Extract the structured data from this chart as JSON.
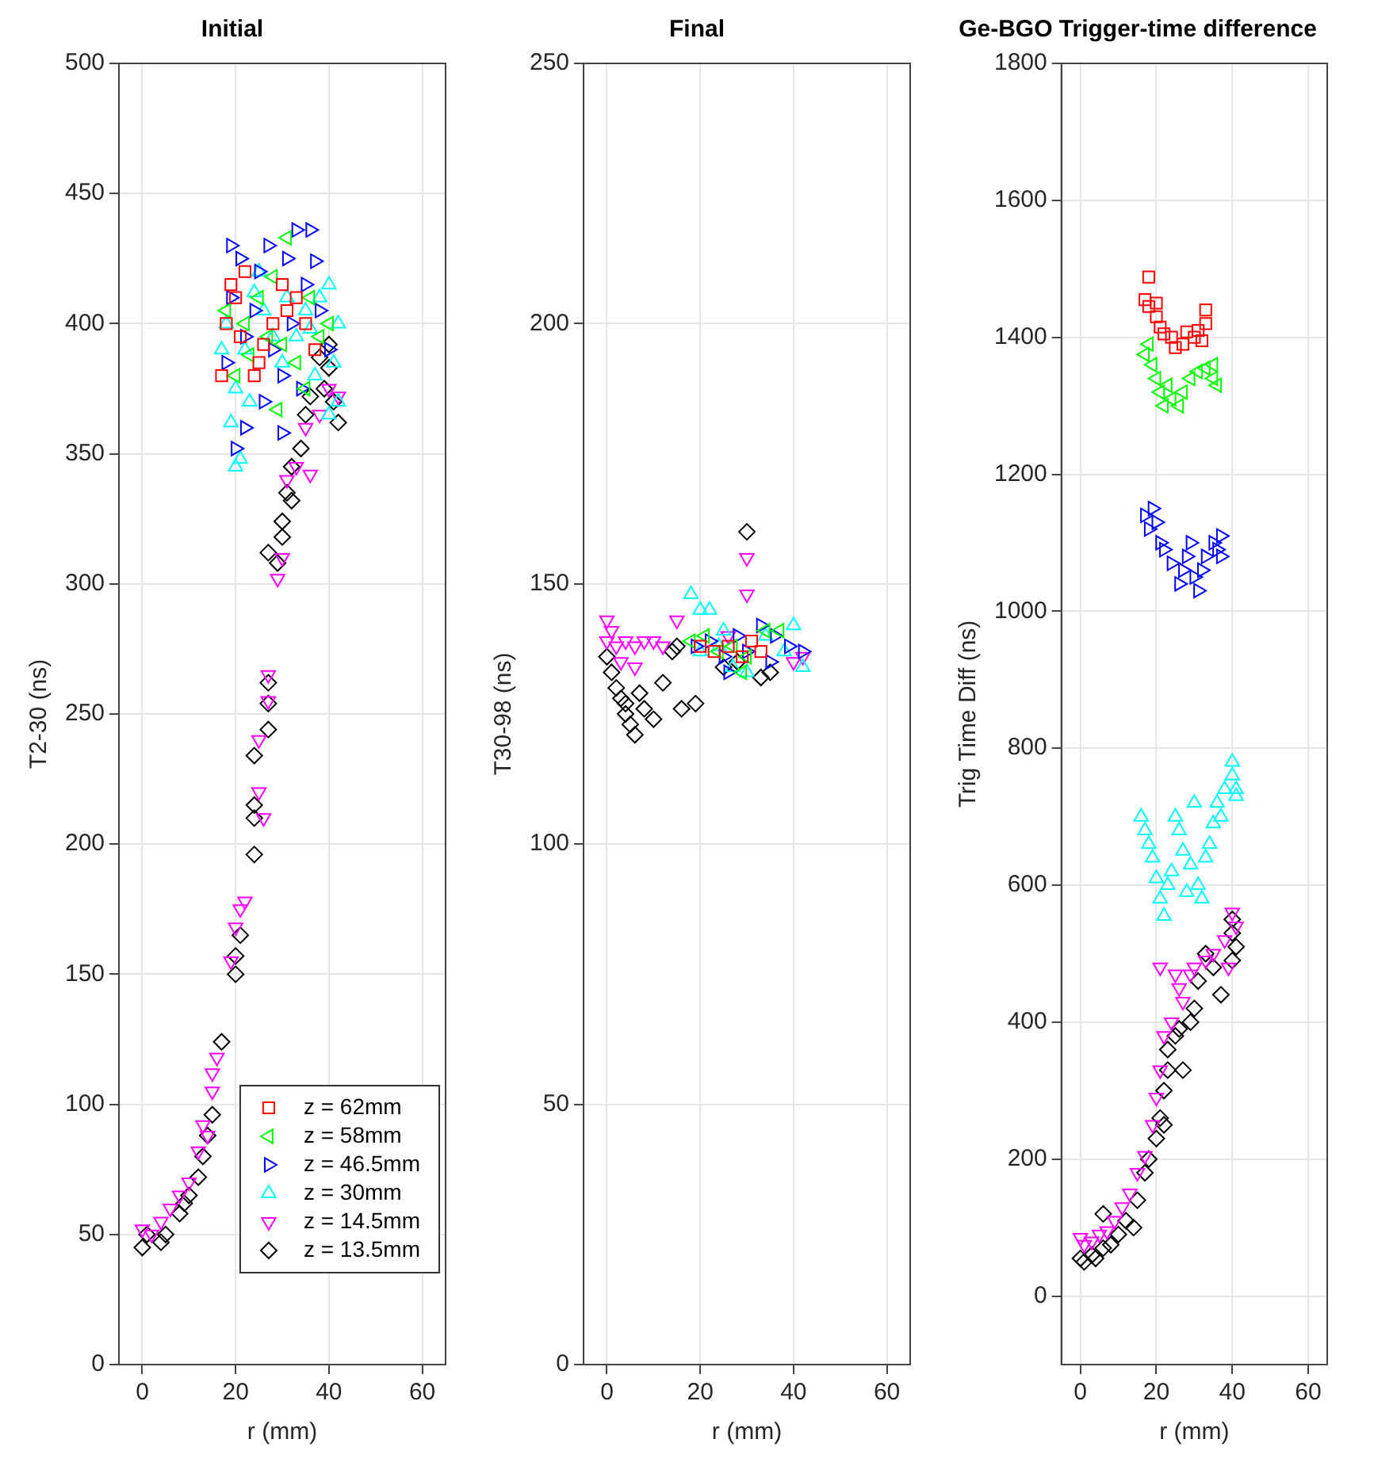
{
  "chart_data": [
    {
      "type": "scatter",
      "title": "Initial",
      "xlabel": "r (mm)",
      "ylabel": "T2-30 (ns)",
      "xlim": [
        -5,
        65
      ],
      "xticks": [
        0,
        20,
        40,
        60
      ],
      "ylim": [
        0,
        500
      ],
      "yticks": [
        0,
        50,
        100,
        150,
        200,
        250,
        300,
        350,
        400,
        450,
        500
      ],
      "grid": true,
      "legend": "bottom right",
      "series": [
        {
          "name": "z = 62mm",
          "color": "#ff0000",
          "marker": "square",
          "x": [
            17,
            18,
            19,
            20,
            21,
            24,
            26,
            28,
            30,
            31,
            33,
            35,
            37,
            22,
            25
          ],
          "values": [
            380,
            400,
            415,
            410,
            395,
            380,
            392,
            400,
            415,
            405,
            410,
            400,
            390,
            420,
            385
          ]
        },
        {
          "name": "z = 58mm",
          "color": "#00ff00",
          "marker": "triangle-left",
          "x": [
            31,
            29,
            20,
            22,
            25,
            28,
            30,
            33,
            36,
            38,
            18,
            23,
            35,
            40,
            27
          ],
          "values": [
            433,
            367,
            380,
            400,
            410,
            418,
            392,
            385,
            410,
            395,
            405,
            388,
            375,
            400,
            395
          ]
        },
        {
          "name": "z = 46.5mm",
          "color": "#0000ff",
          "marker": "triangle-right",
          "x": [
            20,
            22,
            19,
            21,
            27,
            31,
            33,
            36,
            37,
            35,
            32,
            30,
            28,
            24,
            22,
            18,
            26,
            30,
            34,
            38,
            40,
            19,
            25
          ],
          "values": [
            352,
            360,
            430,
            425,
            430,
            425,
            436,
            436,
            424,
            415,
            400,
            380,
            390,
            405,
            395,
            385,
            370,
            358,
            375,
            405,
            390,
            410,
            420
          ]
        },
        {
          "name": "z = 30mm",
          "color": "#00ffff",
          "marker": "triangle",
          "x": [
            20,
            21,
            19,
            20,
            22,
            18,
            24,
            26,
            28,
            30,
            33,
            35,
            38,
            40,
            42,
            41,
            40,
            37,
            23,
            25,
            31,
            36,
            42,
            17
          ],
          "values": [
            345,
            348,
            362,
            375,
            390,
            400,
            412,
            405,
            395,
            385,
            395,
            405,
            410,
            415,
            400,
            385,
            365,
            380,
            370,
            420,
            410,
            398,
            370,
            390
          ]
        },
        {
          "name": "z = 14.5mm",
          "color": "#ff00ff",
          "marker": "triangle-down",
          "x": [
            0,
            2,
            4,
            6,
            8,
            10,
            12,
            13,
            15,
            15,
            16,
            14,
            19,
            20,
            21,
            22,
            25,
            25,
            27,
            27,
            29,
            30,
            31,
            33,
            36,
            35,
            38,
            40,
            42,
            26
          ],
          "values": [
            52,
            50,
            55,
            60,
            65,
            70,
            82,
            92,
            105,
            112,
            118,
            88,
            155,
            168,
            175,
            178,
            220,
            240,
            255,
            265,
            302,
            310,
            340,
            345,
            342,
            360,
            365,
            375,
            372,
            210
          ]
        },
        {
          "name": "z = 13.5mm",
          "color": "#000000",
          "marker": "diamond",
          "x": [
            0,
            1,
            4,
            5,
            8,
            9,
            10,
            12,
            13,
            14,
            15,
            17,
            20,
            20,
            21,
            24,
            24,
            24,
            24,
            27,
            27,
            27,
            27,
            29,
            30,
            30,
            31,
            32,
            34,
            35,
            36,
            39,
            40,
            40,
            41,
            42,
            38,
            32
          ],
          "values": [
            45,
            50,
            47,
            50,
            58,
            62,
            65,
            72,
            80,
            88,
            96,
            124,
            150,
            157,
            165,
            196,
            210,
            215,
            234,
            244,
            254,
            262,
            312,
            308,
            318,
            324,
            335,
            345,
            352,
            365,
            372,
            375,
            383,
            392,
            370,
            362,
            387,
            332
          ]
        }
      ]
    },
    {
      "type": "scatter",
      "title": "Final",
      "xlabel": "r (mm)",
      "ylabel": "T30-98 (ns)",
      "xlim": [
        -5,
        65
      ],
      "xticks": [
        0,
        20,
        40,
        60
      ],
      "ylim": [
        0,
        250
      ],
      "yticks": [
        0,
        50,
        100,
        150,
        200,
        250
      ],
      "grid": true,
      "series": [
        {
          "color": "#ff0000",
          "marker": "square",
          "x": [
            20,
            23,
            26,
            29,
            31,
            33
          ],
          "values": [
            138,
            137,
            138,
            136,
            139,
            137
          ]
        },
        {
          "color": "#00ff00",
          "marker": "triangle-left",
          "x": [
            18,
            21,
            24,
            27,
            30,
            34,
            37,
            29
          ],
          "values": [
            139,
            140,
            137,
            138,
            136,
            141,
            141,
            133
          ]
        },
        {
          "color": "#0000ff",
          "marker": "triangle-right",
          "x": [
            19,
            22,
            25,
            28,
            30,
            33,
            36,
            39,
            42,
            35,
            26
          ],
          "values": [
            138,
            139,
            136,
            140,
            137,
            142,
            140,
            138,
            137,
            135,
            133
          ]
        },
        {
          "color": "#00ffff",
          "marker": "triangle",
          "x": [
            18,
            20,
            22,
            24,
            27,
            30,
            34,
            40,
            38,
            42,
            25,
            20
          ],
          "values": [
            148,
            145,
            145,
            138,
            134,
            133,
            140,
            142,
            137,
            134,
            141,
            137
          ]
        },
        {
          "color": "#ff00ff",
          "marker": "triangle-down",
          "x": [
            0,
            1,
            0,
            2,
            4,
            6,
            8,
            10,
            12,
            3,
            6,
            15,
            30,
            30,
            26,
            40,
            42
          ],
          "values": [
            143,
            141,
            139,
            138,
            139,
            138,
            139,
            139,
            138,
            135,
            134,
            143,
            155,
            148,
            140,
            135,
            136
          ]
        },
        {
          "color": "#000000",
          "marker": "diamond",
          "x": [
            0,
            1,
            2,
            3,
            4,
            5,
            6,
            4,
            7,
            8,
            10,
            12,
            14,
            16,
            19,
            15,
            30,
            25,
            33,
            35,
            28
          ],
          "values": [
            136,
            133,
            130,
            128,
            125,
            123,
            121,
            127,
            129,
            126,
            124,
            131,
            137,
            126,
            127,
            138,
            160,
            134,
            132,
            133,
            135
          ]
        }
      ]
    },
    {
      "type": "scatter",
      "title": "Ge-BGO Trigger-time difference",
      "xlabel": "r (mm)",
      "ylabel": "Trig Time Diff (ns)",
      "xlim": [
        -5,
        65
      ],
      "xticks": [
        0,
        20,
        40,
        60
      ],
      "ylim": [
        -100,
        1800
      ],
      "yticks": [
        0,
        200,
        400,
        600,
        800,
        1000,
        1200,
        1400,
        1600,
        1800
      ],
      "grid": true,
      "series": [
        {
          "color": "#ff0000",
          "marker": "square",
          "x": [
            18,
            17,
            18,
            20,
            20,
            21,
            22,
            24,
            25,
            27,
            28,
            30,
            31,
            32,
            33,
            33
          ],
          "values": [
            1488,
            1455,
            1445,
            1450,
            1430,
            1415,
            1405,
            1400,
            1385,
            1390,
            1408,
            1400,
            1410,
            1395,
            1420,
            1440
          ]
        },
        {
          "color": "#00ff00",
          "marker": "triangle-left",
          "x": [
            17,
            18,
            19,
            20,
            21,
            22,
            24,
            26,
            27,
            29,
            31,
            33,
            35,
            36,
            35,
            23
          ],
          "values": [
            1375,
            1390,
            1360,
            1340,
            1320,
            1300,
            1310,
            1300,
            1320,
            1340,
            1350,
            1355,
            1340,
            1330,
            1360,
            1330
          ]
        },
        {
          "color": "#0000ff",
          "marker": "triangle-right",
          "x": [
            17,
            18,
            19,
            20,
            21,
            22,
            24,
            26,
            27,
            28,
            29,
            30,
            32,
            33,
            35,
            36,
            37,
            37,
            31
          ],
          "values": [
            1140,
            1120,
            1150,
            1130,
            1100,
            1090,
            1070,
            1040,
            1060,
            1080,
            1100,
            1050,
            1060,
            1080,
            1100,
            1090,
            1080,
            1110,
            1030
          ]
        },
        {
          "color": "#00ffff",
          "marker": "triangle",
          "x": [
            16,
            17,
            18,
            19,
            20,
            21,
            22,
            23,
            24,
            25,
            26,
            27,
            28,
            29,
            30,
            31,
            32,
            33,
            34,
            35,
            36,
            37,
            38,
            40,
            40,
            41,
            41
          ],
          "values": [
            700,
            680,
            660,
            640,
            610,
            580,
            555,
            600,
            620,
            700,
            680,
            650,
            590,
            630,
            720,
            600,
            580,
            640,
            660,
            690,
            720,
            700,
            740,
            760,
            780,
            740,
            730
          ]
        },
        {
          "color": "#ff00ff",
          "marker": "triangle-down",
          "x": [
            0,
            1,
            3,
            5,
            7,
            9,
            11,
            13,
            15,
            17,
            19,
            20,
            21,
            22,
            24,
            25,
            26,
            27,
            29,
            30,
            33,
            35,
            38,
            40,
            41,
            21,
            39
          ],
          "values": [
            85,
            75,
            80,
            90,
            95,
            110,
            130,
            150,
            180,
            205,
            250,
            290,
            330,
            380,
            400,
            470,
            450,
            430,
            470,
            480,
            490,
            500,
            520,
            560,
            540,
            480,
            480
          ]
        },
        {
          "color": "#000000",
          "marker": "diamond",
          "x": [
            0,
            1,
            3,
            4,
            6,
            6,
            8,
            10,
            12,
            15,
            17,
            18,
            20,
            21,
            22,
            23,
            23,
            25,
            26,
            27,
            29,
            30,
            31,
            33,
            35,
            37,
            40,
            40,
            41,
            40,
            22,
            14
          ],
          "values": [
            55,
            50,
            60,
            55,
            120,
            70,
            75,
            90,
            110,
            140,
            180,
            200,
            230,
            260,
            300,
            330,
            360,
            380,
            390,
            330,
            400,
            420,
            460,
            500,
            480,
            440,
            550,
            530,
            510,
            490,
            250,
            100
          ]
        }
      ]
    }
  ]
}
